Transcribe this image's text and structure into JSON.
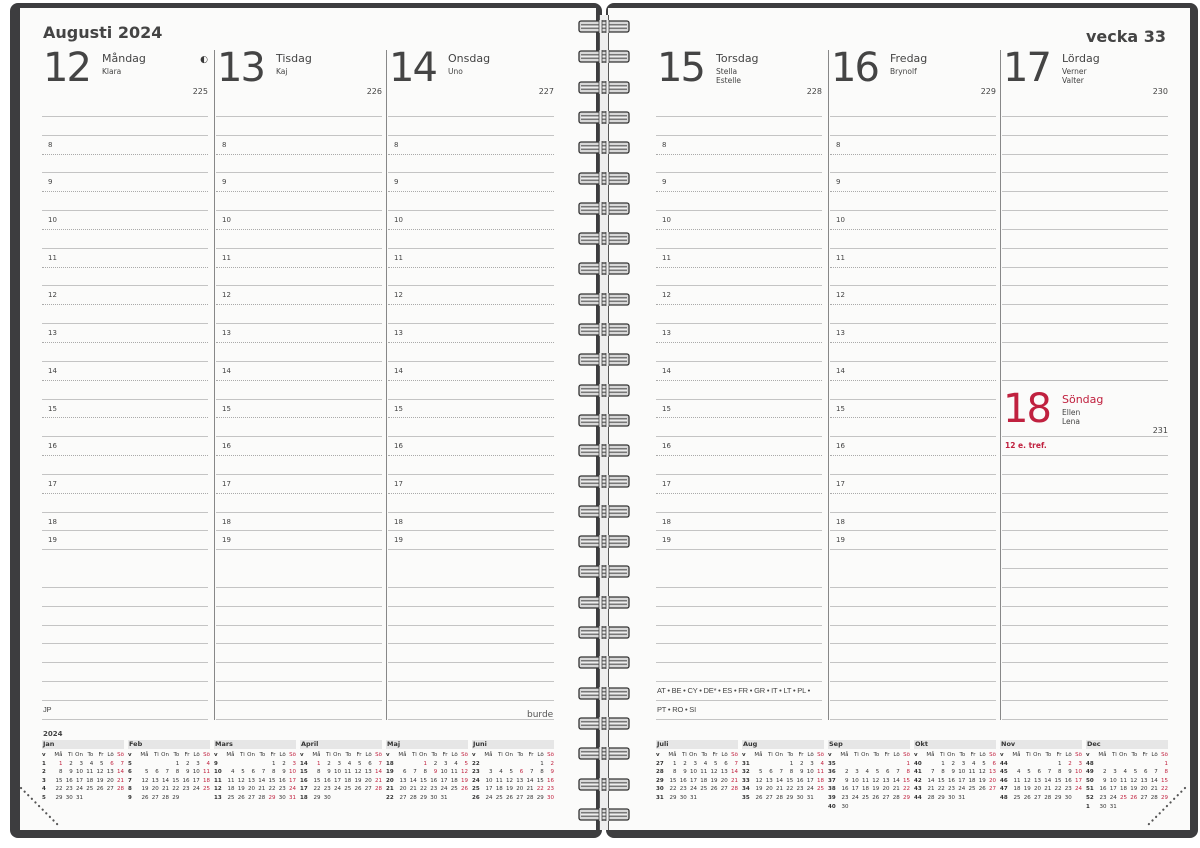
{
  "left_page": {
    "title": "Augusti 2024",
    "days": [
      {
        "num": "12",
        "name": "Måndag",
        "names": [
          "Klara"
        ],
        "doy": "225",
        "moon": "◐",
        "footnote": "JP"
      },
      {
        "num": "13",
        "name": "Tisdag",
        "names": [
          "Kaj"
        ],
        "doy": "226"
      },
      {
        "num": "14",
        "name": "Onsdag",
        "names": [
          "Uno"
        ],
        "doy": "227"
      }
    ],
    "brand": "burde"
  },
  "right_page": {
    "title": "vecka 33",
    "days": [
      {
        "num": "15",
        "name": "Torsdag",
        "names": [
          "Stella",
          "Estelle"
        ],
        "doy": "228",
        "footnote": "AT • BE • CY • DE* • ES • FR • GR • IT • LT • PL •",
        "footnote2": "PT • RO • SI"
      },
      {
        "num": "16",
        "name": "Fredag",
        "names": [
          "Brynolf"
        ],
        "doy": "229"
      },
      {
        "num": "17",
        "name": "Lördag",
        "names": [
          "Verner",
          "Valter"
        ],
        "doy": "230"
      }
    ],
    "sunday": {
      "num": "18",
      "name": "Söndag",
      "names": [
        "Ellen",
        "Lena"
      ],
      "doy": "231",
      "note": "12 e. tref."
    }
  },
  "hours": [
    "8",
    "9",
    "10",
    "11",
    "12",
    "13",
    "14",
    "15",
    "16",
    "17",
    "18",
    "19"
  ],
  "mini_calendar": {
    "year": "2024",
    "weekdays": [
      "v",
      "Må",
      "Ti",
      "On",
      "To",
      "Fr",
      "Lö",
      "Sö"
    ],
    "months": [
      {
        "name": "Jan",
        "offset": 0,
        "days": 31,
        "weeks": [
          1,
          2,
          3,
          4,
          5
        ],
        "red": [
          1,
          6,
          7,
          14,
          21,
          28
        ]
      },
      {
        "name": "Feb",
        "offset": 3,
        "days": 29,
        "weeks": [
          5,
          6,
          7,
          8,
          9
        ],
        "red": [
          4,
          11,
          18,
          25
        ]
      },
      {
        "name": "Mars",
        "offset": 4,
        "days": 31,
        "weeks": [
          9,
          10,
          11,
          12,
          13
        ],
        "red": [
          3,
          10,
          17,
          24,
          29,
          31
        ]
      },
      {
        "name": "April",
        "offset": 0,
        "days": 30,
        "weeks": [
          14,
          15,
          16,
          17,
          18
        ],
        "red": [
          1,
          7,
          14,
          21,
          28
        ]
      },
      {
        "name": "Maj",
        "offset": 2,
        "days": 31,
        "weeks": [
          18,
          19,
          20,
          21,
          22
        ],
        "red": [
          1,
          5,
          9,
          12,
          19,
          26
        ]
      },
      {
        "name": "Juni",
        "offset": 5,
        "days": 30,
        "weeks": [
          22,
          23,
          24,
          25,
          26
        ],
        "red": [
          2,
          6,
          9,
          16,
          22,
          23,
          30
        ]
      },
      {
        "name": "Juli",
        "offset": 0,
        "days": 31,
        "weeks": [
          27,
          28,
          29,
          30,
          31
        ],
        "red": [
          7,
          14,
          21,
          28
        ]
      },
      {
        "name": "Aug",
        "offset": 3,
        "days": 31,
        "weeks": [
          31,
          32,
          33,
          34,
          35
        ],
        "red": [
          4,
          11,
          18,
          25
        ]
      },
      {
        "name": "Sep",
        "offset": 6,
        "days": 30,
        "weeks": [
          35,
          36,
          37,
          38,
          39,
          40
        ],
        "red": [
          1,
          8,
          15,
          22,
          29
        ]
      },
      {
        "name": "Okt",
        "offset": 1,
        "days": 31,
        "weeks": [
          40,
          41,
          42,
          43,
          44
        ],
        "red": [
          6,
          13,
          20,
          27
        ]
      },
      {
        "name": "Nov",
        "offset": 4,
        "days": 30,
        "weeks": [
          44,
          45,
          46,
          47,
          48
        ],
        "red": [
          2,
          3,
          10,
          17,
          24
        ]
      },
      {
        "name": "Dec",
        "offset": 6,
        "days": 31,
        "weeks": [
          48,
          49,
          50,
          51,
          52,
          1
        ],
        "red": [
          1,
          8,
          15,
          22,
          25,
          26,
          29
        ]
      }
    ]
  },
  "colors": {
    "cover": "#3d3d3f",
    "holiday_red": "#c0213f",
    "page": "#fbfbfa"
  }
}
